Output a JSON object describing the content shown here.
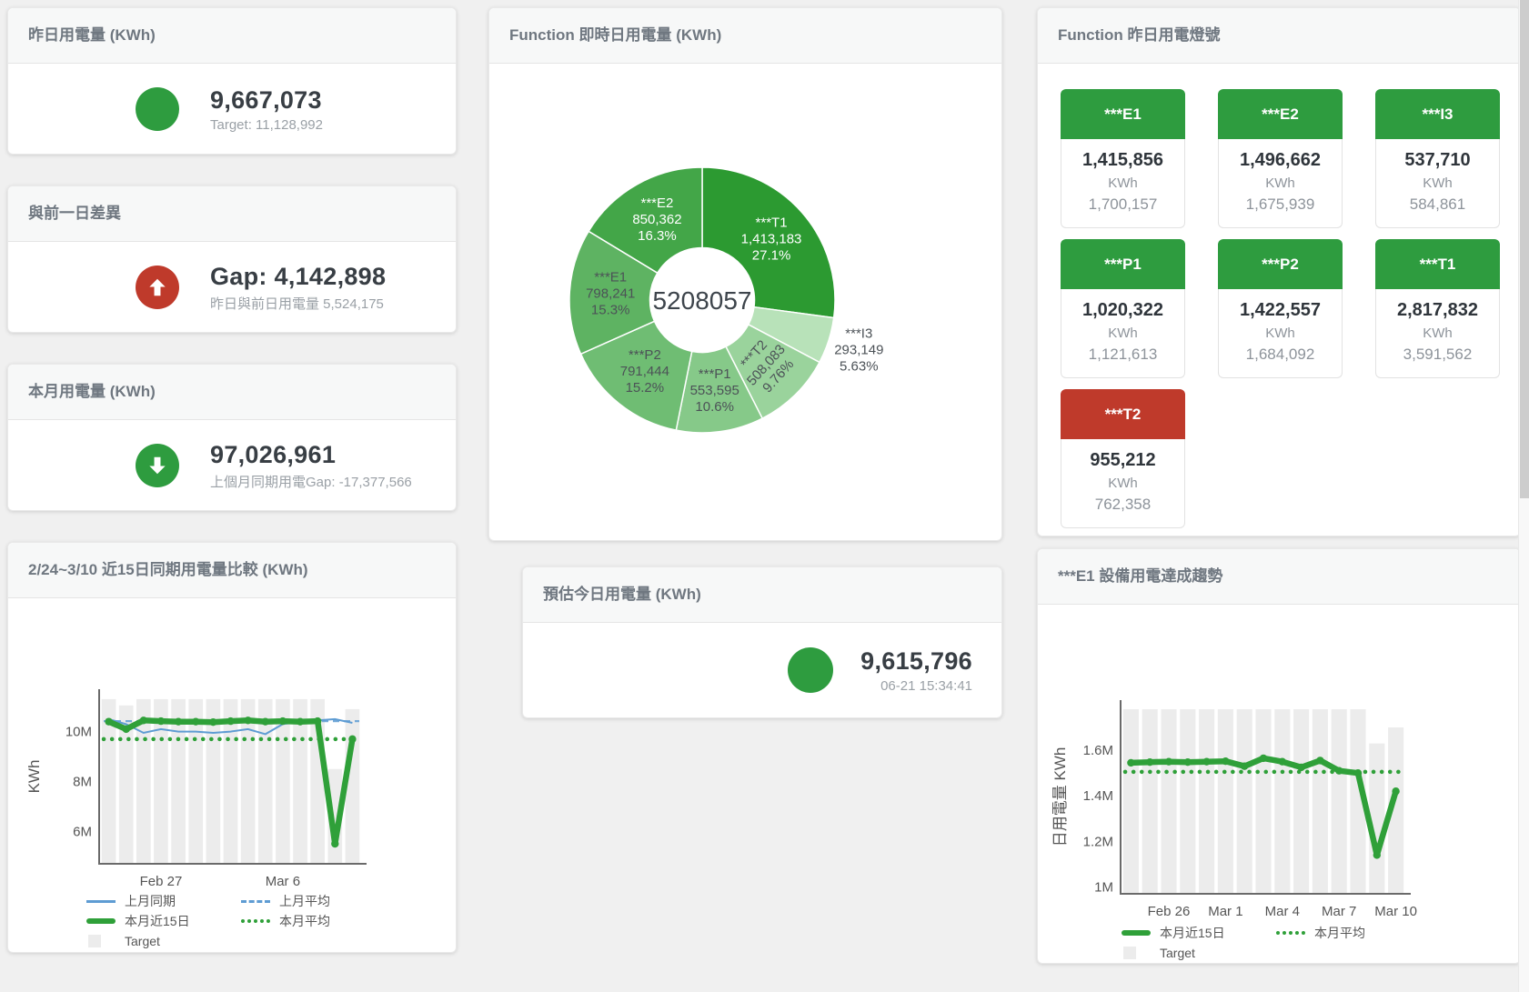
{
  "colors": {
    "green": "#2e9c3f",
    "red": "#bf3a2b",
    "blue": "#5e9cd3",
    "blue_dashed": "#74a9d8",
    "line_green": "#2fa039",
    "bar_gray": "#ececec",
    "axis": "#6a6a6a",
    "tick_text": "#555555",
    "title_text": "#6f7780",
    "value_text": "#383e44",
    "muted_text": "#9aa0a6"
  },
  "cards": {
    "yesterday": {
      "title": "昨日用電量 (KWh)",
      "value": "9,667,073",
      "subtitle": "Target: 11,128,992"
    },
    "day_gap": {
      "title": "與前一日差異",
      "value": "Gap: 4,142,898",
      "subtitle": "昨日與前日用電量 5,524,175"
    },
    "month": {
      "title": "本月用電量 (KWh)",
      "value": "97,026,961",
      "subtitle": "上個月同期用電Gap: -17,377,566"
    },
    "estimate": {
      "title": "預估今日用電量 (KWh)",
      "value": "9,615,796",
      "timestamp": "06-21 15:34:41"
    }
  },
  "lights_card": {
    "title": "Function 昨日用電燈號",
    "unit": "KWh",
    "tiles": [
      {
        "label": "***E1",
        "value": "1,415,856",
        "target": "1,700,157",
        "status": "green"
      },
      {
        "label": "***E2",
        "value": "1,496,662",
        "target": "1,675,939",
        "status": "green"
      },
      {
        "label": "***I3",
        "value": "537,710",
        "target": "584,861",
        "status": "green"
      },
      {
        "label": "***P1",
        "value": "1,020,322",
        "target": "1,121,613",
        "status": "green"
      },
      {
        "label": "***P2",
        "value": "1,422,557",
        "target": "1,684,092",
        "status": "green"
      },
      {
        "label": "***T1",
        "value": "2,817,832",
        "target": "3,591,562",
        "status": "green"
      },
      {
        "label": "***T2",
        "value": "955,212",
        "target": "762,358",
        "status": "red"
      }
    ]
  },
  "chart_data": [
    {
      "id": "realtime-donut",
      "type": "pie",
      "title": "Function 即時日用電量 (KWh)",
      "center_total": "5208057",
      "legend_position": "none",
      "segments": [
        {
          "name": "***T1",
          "value": 1413183,
          "value_label": "1,413,183",
          "pct": "27.1%",
          "color": "#2c9a31",
          "label_color": "white"
        },
        {
          "name": "***I3",
          "value": 293149,
          "value_label": "293,149",
          "pct": "5.63%",
          "color": "#b8e2b9",
          "label_color": "dark",
          "label_outside": true
        },
        {
          "name": "***T2",
          "value": 508083,
          "value_label": "508,083",
          "pct": "9.76%",
          "color": "#9ad39c",
          "label_color": "dark",
          "rotated": true
        },
        {
          "name": "***P1",
          "value": 553595,
          "value_label": "553,595",
          "pct": "10.6%",
          "color": "#86c989",
          "label_color": "dark"
        },
        {
          "name": "***P2",
          "value": 791444,
          "value_label": "791,444",
          "pct": "15.2%",
          "color": "#6fbd73",
          "label_color": "dark"
        },
        {
          "name": "***E1",
          "value": 798241,
          "value_label": "798,241",
          "pct": "15.3%",
          "color": "#5eb362",
          "label_color": "dark"
        },
        {
          "name": "***E2",
          "value": 850362,
          "value_label": "850,362",
          "pct": "16.3%",
          "color": "#43a648",
          "label_color": "white"
        }
      ]
    },
    {
      "id": "compare-chart",
      "type": "line+bar",
      "title": "2/24~3/10 近15日同期用電量比較 (KWh)",
      "ylabel": "KWh",
      "ylim": [
        4.7,
        11.7
      ],
      "grid": false,
      "yticks": [
        {
          "v": 6,
          "label": "6M"
        },
        {
          "v": 8,
          "label": "8M"
        },
        {
          "v": 10,
          "label": "10M"
        }
      ],
      "xticks": [
        {
          "i": 3,
          "label": "Feb 27"
        },
        {
          "i": 10,
          "label": "Mar 6"
        }
      ],
      "target_bars": [
        11.3,
        11.05,
        11.3,
        11.3,
        11.3,
        11.3,
        11.3,
        11.3,
        11.3,
        11.3,
        11.3,
        11.3,
        11.3,
        8.5,
        10.9
      ],
      "series": [
        {
          "name": "上月平均",
          "style": "dashed",
          "color": "#74a9d8",
          "values": 10.42
        },
        {
          "name": "本月平均",
          "style": "dotted",
          "color": "#2fa039",
          "values": 9.7
        },
        {
          "name": "上月同期",
          "style": "thin",
          "color": "#5e9cd3",
          "values": [
            10.5,
            10.3,
            9.95,
            10.1,
            10.0,
            10.0,
            9.95,
            10.0,
            10.1,
            9.9,
            10.3,
            10.4,
            10.45,
            10.5,
            10.35
          ]
        },
        {
          "name": "本月近15日",
          "style": "thick",
          "color": "#2fa039",
          "values": [
            10.4,
            10.1,
            10.45,
            10.42,
            10.4,
            10.4,
            10.38,
            10.42,
            10.45,
            10.4,
            10.42,
            10.4,
            10.42,
            5.5,
            9.7
          ]
        }
      ],
      "legend": [
        {
          "label": "上月同期",
          "swatch": "thin"
        },
        {
          "label": "上月平均",
          "swatch": "dashed"
        },
        {
          "label": "本月近15日",
          "swatch": "thick"
        },
        {
          "label": "本月平均",
          "swatch": "dotted"
        },
        {
          "label": "Target",
          "swatch": "box"
        }
      ]
    },
    {
      "id": "trend-chart",
      "type": "line+bar",
      "title": "***E1 設備用電達成趨勢",
      "ylabel": "日用電量 KWh",
      "ylim": [
        0.97,
        1.82
      ],
      "grid": false,
      "yticks": [
        {
          "v": 1,
          "label": "1M"
        },
        {
          "v": 1.2,
          "label": "1.2M"
        },
        {
          "v": 1.4,
          "label": "1.4M"
        },
        {
          "v": 1.6,
          "label": "1.6M"
        }
      ],
      "xticks": [
        {
          "i": 2,
          "label": "Feb 26"
        },
        {
          "i": 5,
          "label": "Mar 1"
        },
        {
          "i": 8,
          "label": "Mar 4"
        },
        {
          "i": 11,
          "label": "Mar 7"
        },
        {
          "i": 14,
          "label": "Mar 10"
        }
      ],
      "target_bars": [
        1.78,
        1.78,
        1.78,
        1.78,
        1.78,
        1.78,
        1.78,
        1.78,
        1.78,
        1.78,
        1.78,
        1.78,
        1.78,
        1.63,
        1.7
      ],
      "series": [
        {
          "name": "本月平均",
          "style": "dotted",
          "color": "#2fa039",
          "values": 1.505
        },
        {
          "name": "本月近15日",
          "style": "thick",
          "color": "#2fa039",
          "values": [
            1.545,
            1.548,
            1.55,
            1.548,
            1.55,
            1.552,
            1.53,
            1.565,
            1.55,
            1.525,
            1.555,
            1.51,
            1.5,
            1.14,
            1.42
          ]
        }
      ],
      "legend": [
        {
          "label": "本月近15日",
          "swatch": "thick"
        },
        {
          "label": "本月平均",
          "swatch": "dotted"
        },
        {
          "label": "Target",
          "swatch": "box"
        }
      ]
    }
  ]
}
